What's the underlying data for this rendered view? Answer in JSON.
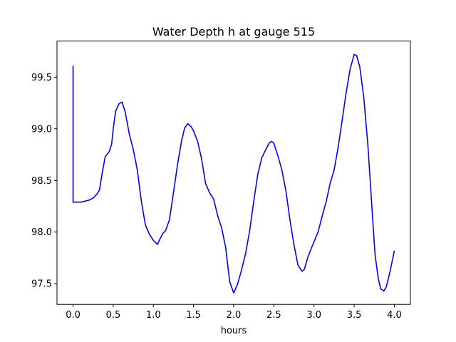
{
  "chart_data": {
    "type": "line",
    "title": "Water Depth h at gauge 515",
    "xlabel": "hours",
    "ylabel": "",
    "xlim": [
      -0.2,
      4.2
    ],
    "ylim": [
      97.3,
      99.85
    ],
    "xticks": [
      0.0,
      0.5,
      1.0,
      1.5,
      2.0,
      2.5,
      3.0,
      3.5,
      4.0
    ],
    "xtick_labels": [
      "0.0",
      "0.5",
      "1.0",
      "1.5",
      "2.0",
      "2.5",
      "3.0",
      "3.5",
      "4.0"
    ],
    "yticks": [
      97.5,
      98.0,
      98.5,
      99.0,
      99.5
    ],
    "ytick_labels": [
      "97.5",
      "98.0",
      "98.5",
      "99.0",
      "99.5"
    ],
    "grid": false,
    "series": [
      {
        "color": "#0000ff",
        "x": [
          0.0,
          0.0,
          0.05,
          0.1,
          0.15,
          0.2,
          0.25,
          0.3,
          0.33,
          0.36,
          0.4,
          0.45,
          0.48,
          0.5,
          0.53,
          0.57,
          0.61,
          0.65,
          0.7,
          0.75,
          0.8,
          0.85,
          0.9,
          0.95,
          1.0,
          1.05,
          1.08,
          1.12,
          1.15,
          1.2,
          1.25,
          1.3,
          1.35,
          1.39,
          1.43,
          1.47,
          1.5,
          1.55,
          1.6,
          1.65,
          1.7,
          1.75,
          1.8,
          1.85,
          1.9,
          1.95,
          2.0,
          2.05,
          2.1,
          2.15,
          2.2,
          2.25,
          2.3,
          2.35,
          2.4,
          2.44,
          2.47,
          2.5,
          2.55,
          2.6,
          2.65,
          2.7,
          2.75,
          2.8,
          2.85,
          2.88,
          2.92,
          2.97,
          3.05,
          3.1,
          3.15,
          3.2,
          3.25,
          3.3,
          3.35,
          3.4,
          3.45,
          3.5,
          3.53,
          3.57,
          3.62,
          3.67,
          3.72,
          3.76,
          3.8,
          3.83,
          3.87,
          3.9,
          3.95,
          4.0
        ],
        "y": [
          99.61,
          98.29,
          98.29,
          98.29,
          98.3,
          98.31,
          98.33,
          98.37,
          98.41,
          98.56,
          98.73,
          98.78,
          98.85,
          99.0,
          99.17,
          99.24,
          99.26,
          99.16,
          98.95,
          98.8,
          98.6,
          98.3,
          98.07,
          97.98,
          97.92,
          97.88,
          97.93,
          97.99,
          98.01,
          98.12,
          98.38,
          98.65,
          98.88,
          99.01,
          99.05,
          99.02,
          98.98,
          98.88,
          98.71,
          98.47,
          98.38,
          98.32,
          98.16,
          98.04,
          97.85,
          97.52,
          97.41,
          97.5,
          97.64,
          97.8,
          98.02,
          98.3,
          98.56,
          98.72,
          98.8,
          98.86,
          98.88,
          98.86,
          98.74,
          98.6,
          98.4,
          98.12,
          97.88,
          97.68,
          97.62,
          97.64,
          97.75,
          97.85,
          98.0,
          98.15,
          98.29,
          98.47,
          98.6,
          98.82,
          99.08,
          99.35,
          99.58,
          99.72,
          99.71,
          99.6,
          99.3,
          98.85,
          98.25,
          97.78,
          97.55,
          97.45,
          97.43,
          97.47,
          97.63,
          97.82
        ]
      }
    ]
  }
}
